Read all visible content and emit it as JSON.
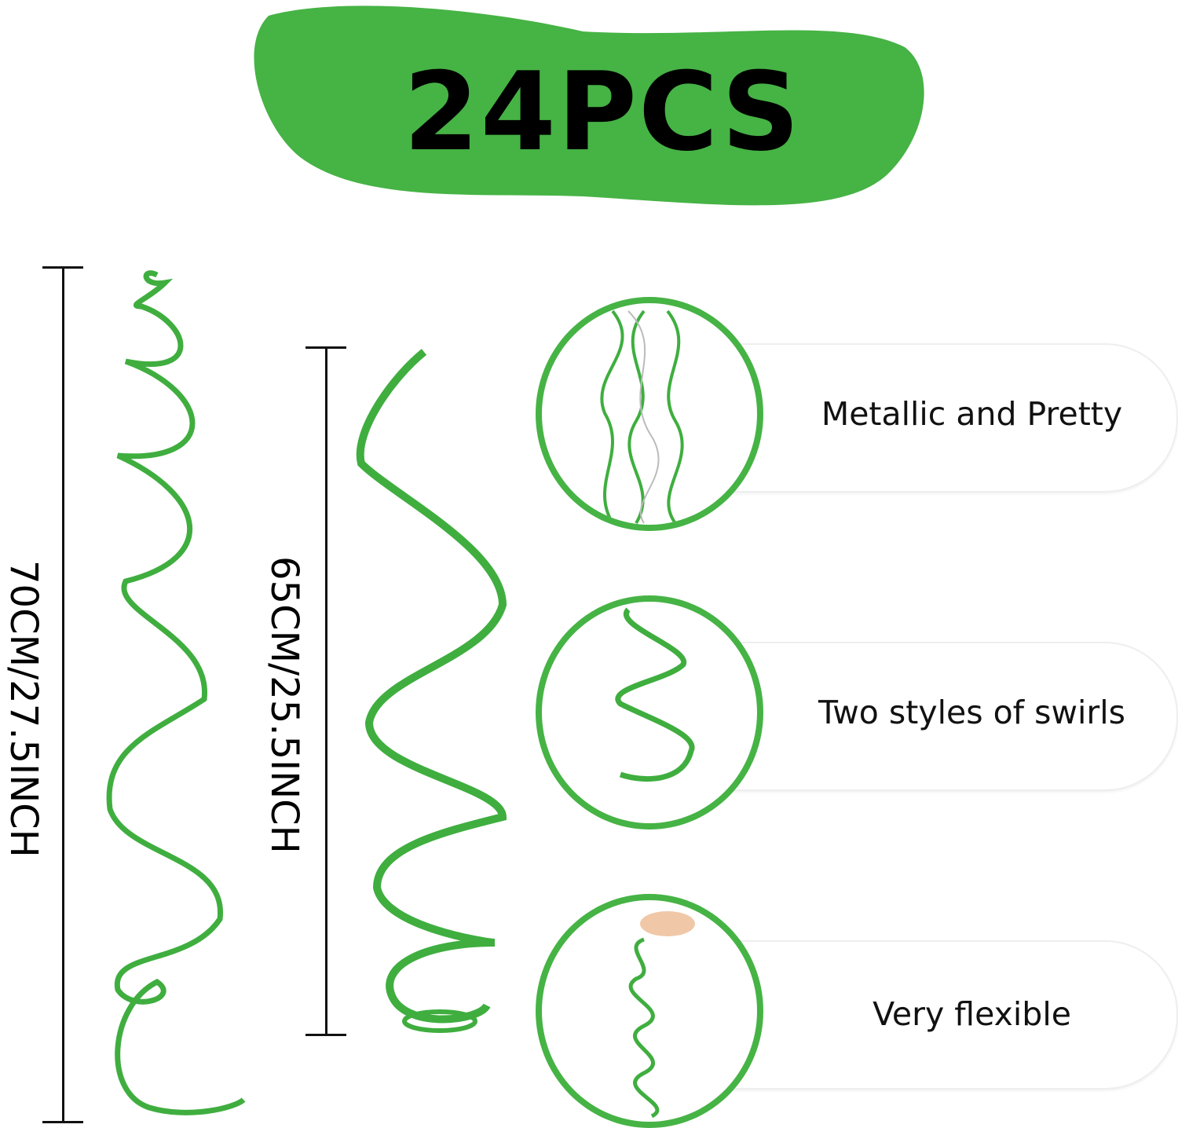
{
  "banner": {
    "text": "24PCS",
    "color": "#46b345"
  },
  "dimensions": [
    {
      "label": "70CM/27.5INCH"
    },
    {
      "label": "65CM/25.5INCH"
    }
  ],
  "features": [
    {
      "label": "Metallic and Pretty"
    },
    {
      "label": "Two styles of swirls"
    },
    {
      "label": "Very flexible"
    }
  ],
  "colors": {
    "accent": "#46b345",
    "text": "#000000"
  }
}
